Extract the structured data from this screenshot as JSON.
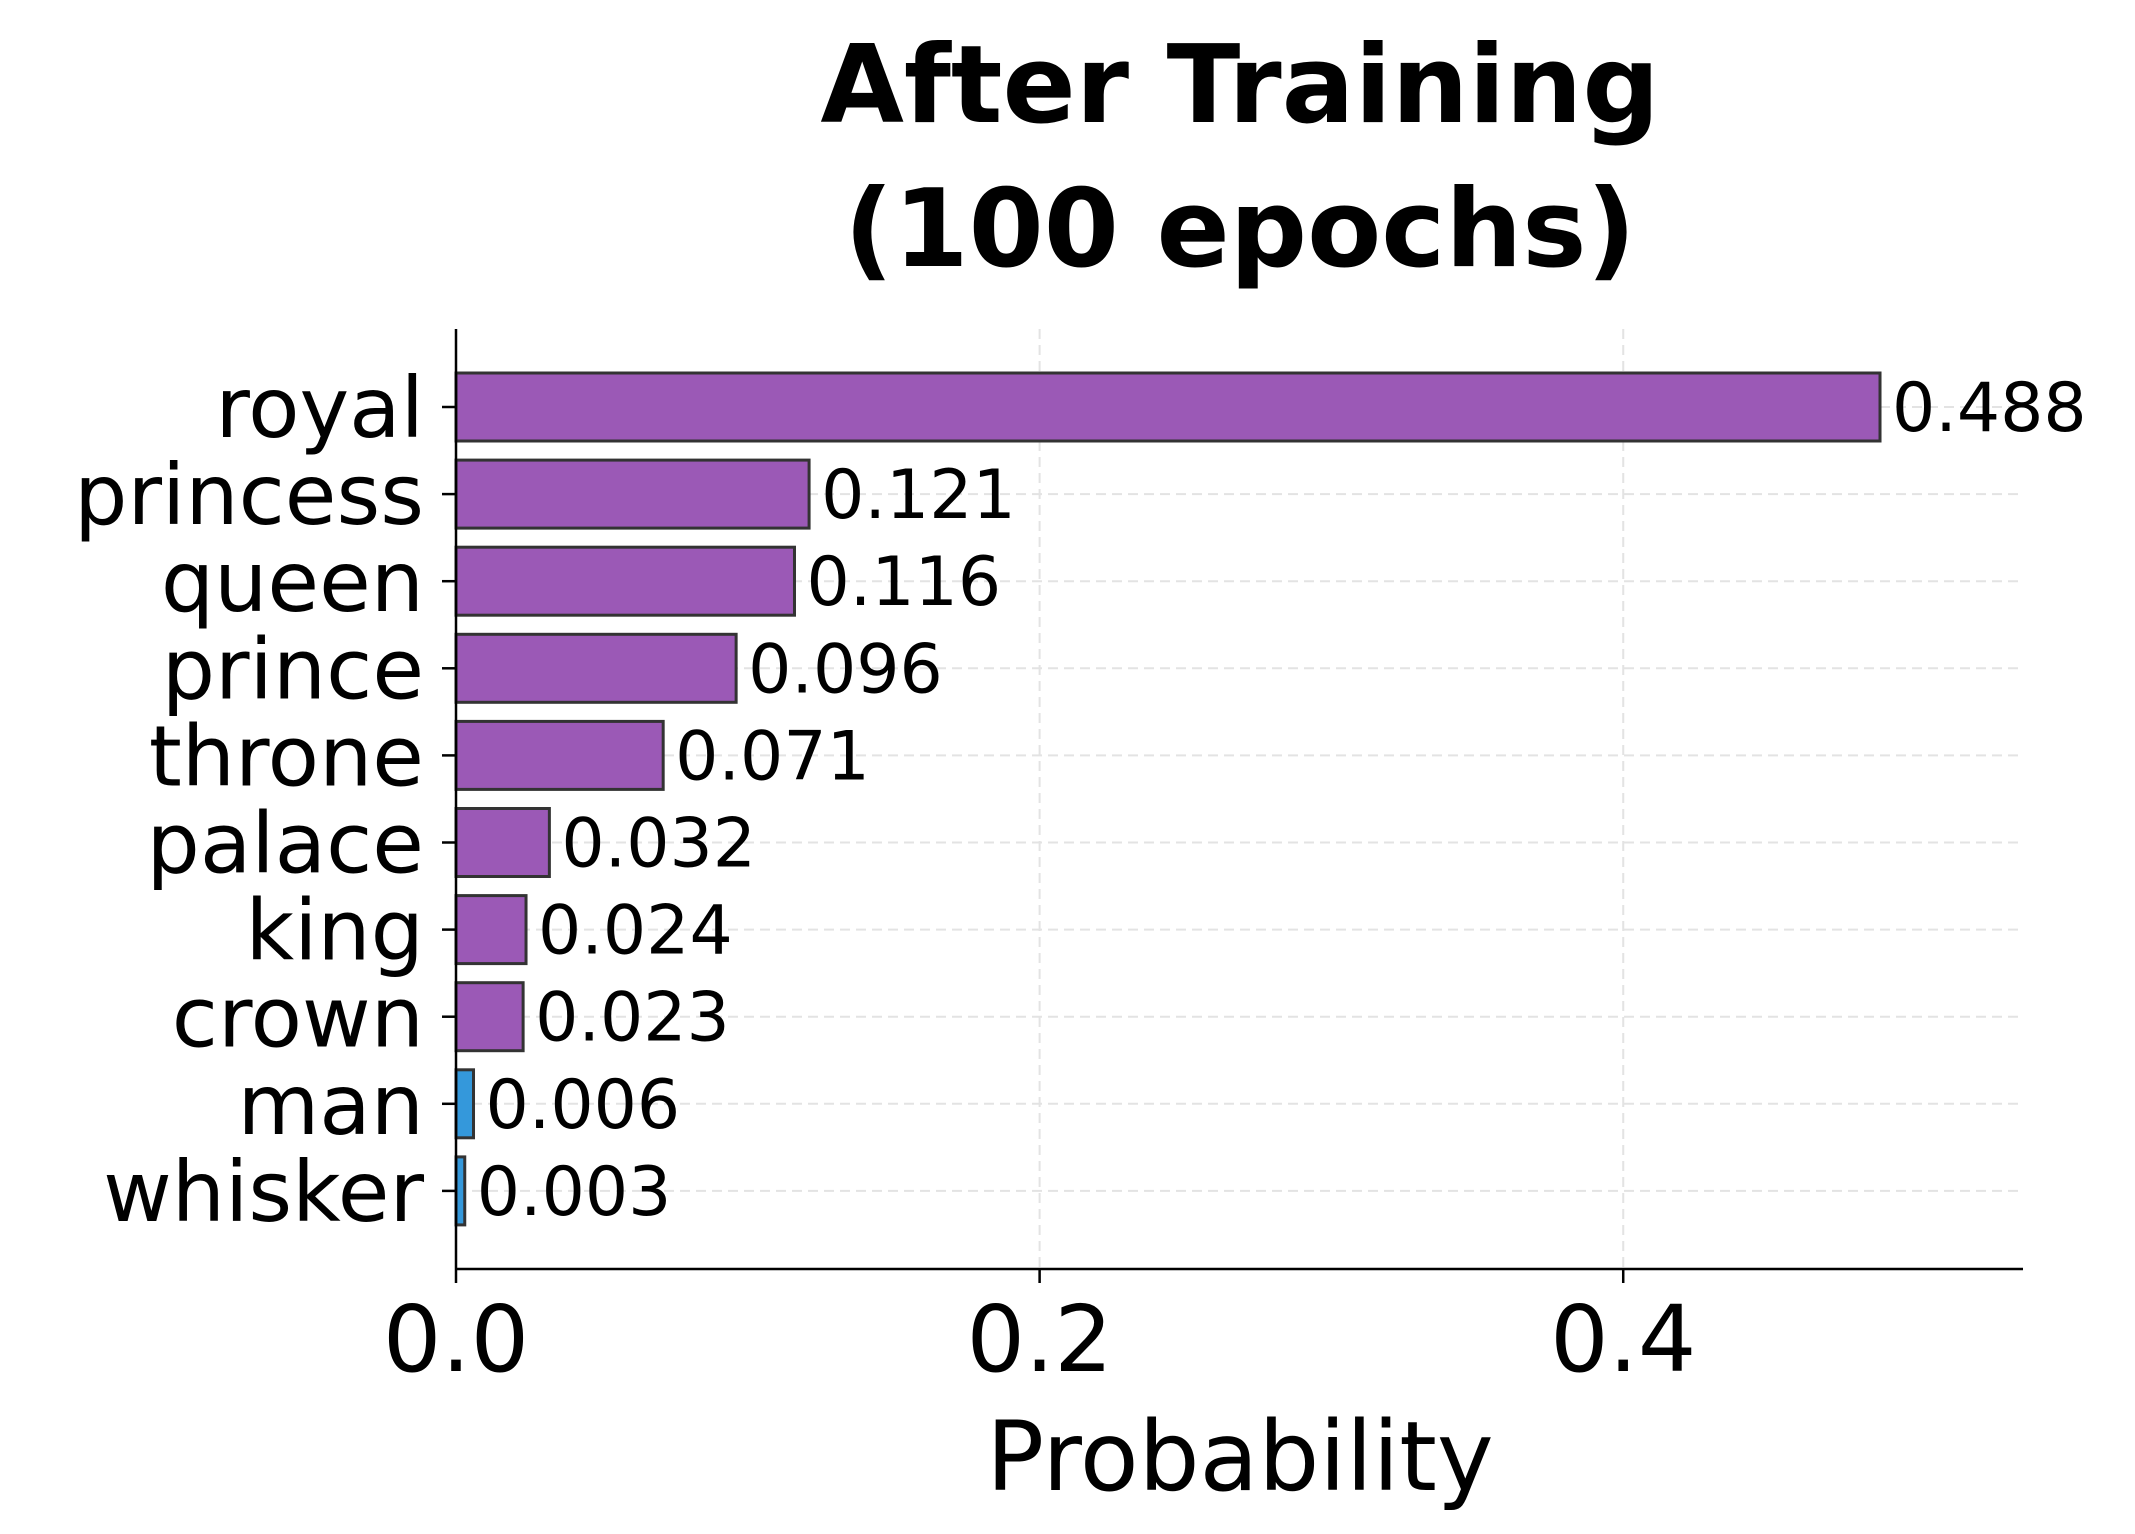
{
  "chart_data": {
    "type": "bar",
    "orientation": "horizontal",
    "title": "After Training\n(100 epochs)",
    "title_lines": [
      "After Training",
      "(100 epochs)"
    ],
    "xlabel": "Probability",
    "ylabel": "",
    "xlim": [
      0,
      0.537
    ],
    "xticks": [
      0.0,
      0.2,
      0.4
    ],
    "xtick_labels": [
      "0.0",
      "0.2",
      "0.4"
    ],
    "grid": true,
    "categories": [
      "royal",
      "princess",
      "queen",
      "prince",
      "throne",
      "palace",
      "king",
      "crown",
      "man",
      "whisker"
    ],
    "values": [
      0.488,
      0.121,
      0.116,
      0.096,
      0.071,
      0.032,
      0.024,
      0.023,
      0.006,
      0.003
    ],
    "value_labels": [
      "0.488",
      "0.121",
      "0.116",
      "0.096",
      "0.071",
      "0.032",
      "0.024",
      "0.023",
      "0.006",
      "0.003"
    ],
    "bar_colors": [
      "#9b59b6",
      "#9b59b6",
      "#9b59b6",
      "#9b59b6",
      "#9b59b6",
      "#9b59b6",
      "#9b59b6",
      "#9b59b6",
      "#3498db",
      "#3498db"
    ],
    "edge_color": "#333333"
  }
}
